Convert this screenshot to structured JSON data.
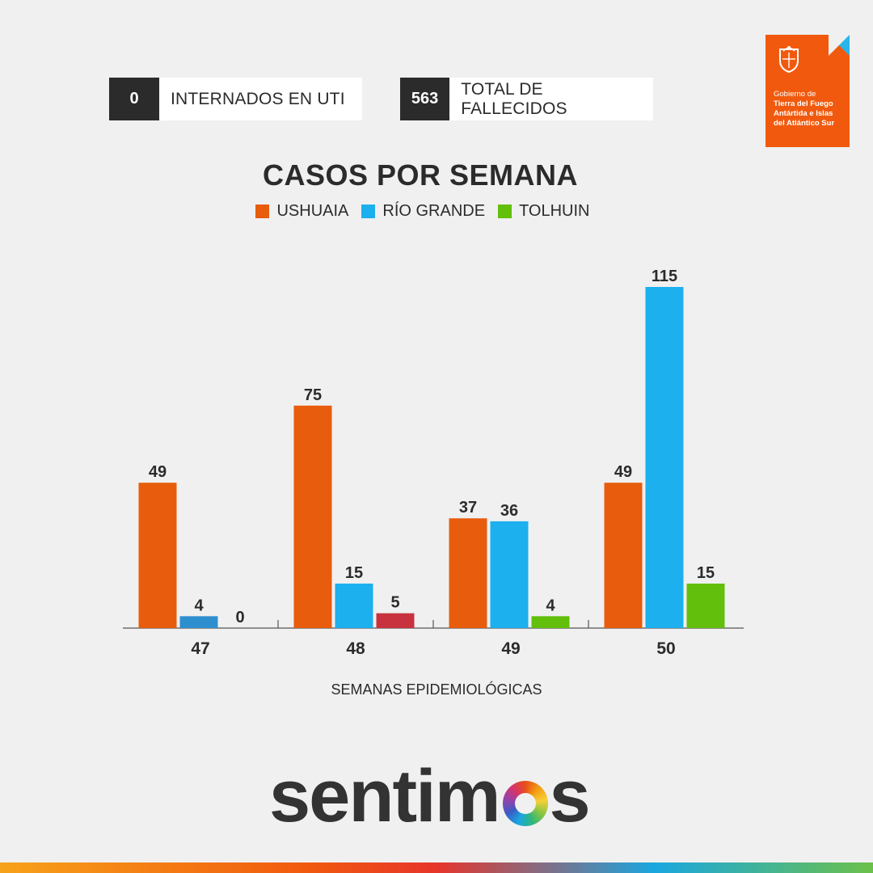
{
  "stats": [
    {
      "value": "0",
      "label": "INTERNADOS EN UTI"
    },
    {
      "value": "563",
      "label": "TOTAL DE FALLECIDOS"
    }
  ],
  "gov_logo": {
    "line1": "Gobierno de",
    "line2": "Tierra del Fuego",
    "line3": "Antártida e Islas",
    "line4": "del Atlántico Sur",
    "color": "#f15a0e",
    "accent": "#29b5e8",
    "icon": "provincial-emblem-icon"
  },
  "chart_data": {
    "type": "bar",
    "title": "CASOS POR SEMANA",
    "xlabel": "SEMANAS EPIDEMIOLÓGICAS",
    "ylabel": "",
    "categories": [
      "47",
      "48",
      "49",
      "50"
    ],
    "series": [
      {
        "name": "USHUAIA",
        "color": "#e85c0d",
        "values": [
          49,
          75,
          37,
          49
        ]
      },
      {
        "name": "RÍO GRANDE",
        "color": "#1cb0ef",
        "values": [
          4,
          15,
          36,
          115
        ],
        "point_colors": [
          "#2e8fcf",
          null,
          null,
          null
        ]
      },
      {
        "name": "TOLHUIN",
        "color": "#62bf0c",
        "values": [
          0,
          5,
          4,
          15
        ],
        "point_colors": [
          null,
          "#c8323f",
          null,
          null
        ]
      }
    ],
    "ylim": [
      0,
      115
    ],
    "grid": false,
    "legend": "top-center"
  },
  "footer": {
    "wordmark_start": "sentim",
    "wordmark_end": "s"
  },
  "colors": {
    "background": "#f0f0f0",
    "text": "#2b2b2b",
    "badge": "#2b2b2b"
  }
}
